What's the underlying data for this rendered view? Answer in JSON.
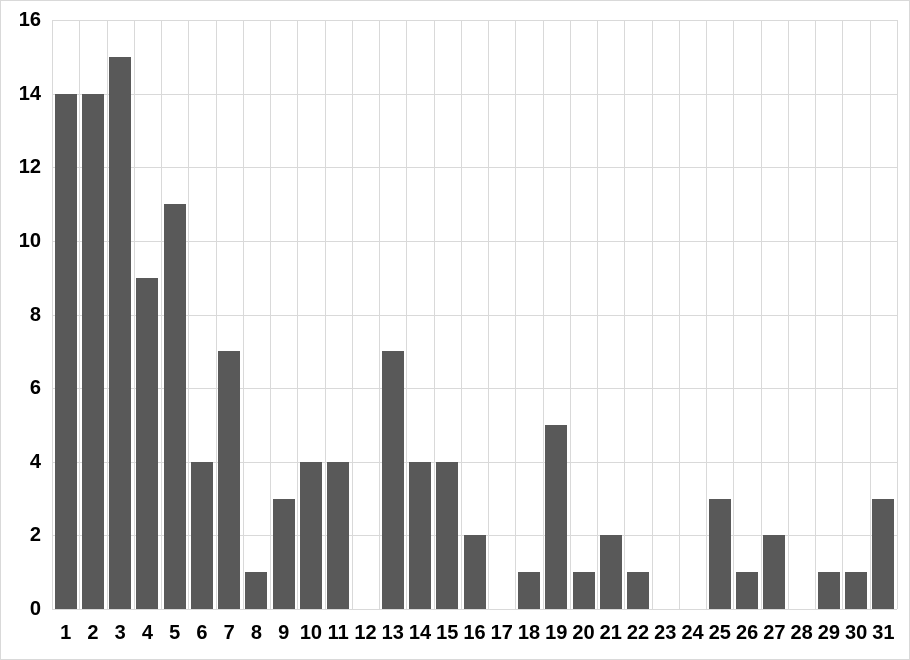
{
  "chart": {
    "background_color": "#ffffff",
    "border_color": "#d9d9d9"
  },
  "chart_data": {
    "type": "bar",
    "categories": [
      "1",
      "2",
      "3",
      "4",
      "5",
      "6",
      "7",
      "8",
      "9",
      "10",
      "11",
      "12",
      "13",
      "14",
      "15",
      "16",
      "17",
      "18",
      "19",
      "20",
      "21",
      "22",
      "23",
      "24",
      "25",
      "26",
      "27",
      "28",
      "29",
      "30",
      "31"
    ],
    "values": [
      14,
      14,
      15,
      9,
      11,
      4,
      7,
      1,
      3,
      4,
      4,
      0,
      7,
      4,
      4,
      2,
      0,
      1,
      5,
      1,
      2,
      1,
      0,
      0,
      3,
      1,
      2,
      0,
      1,
      1,
      3
    ],
    "title": "",
    "xlabel": "",
    "ylabel": "",
    "ylim": [
      0,
      16
    ],
    "yticks": [
      0,
      2,
      4,
      6,
      8,
      10,
      12,
      14,
      16
    ],
    "grid": true,
    "legend": false,
    "bar_color": "#595959",
    "gridline_color": "#d9d9d9",
    "axis_line_color": "#d9d9d9",
    "tick_label_color": "#000000"
  }
}
